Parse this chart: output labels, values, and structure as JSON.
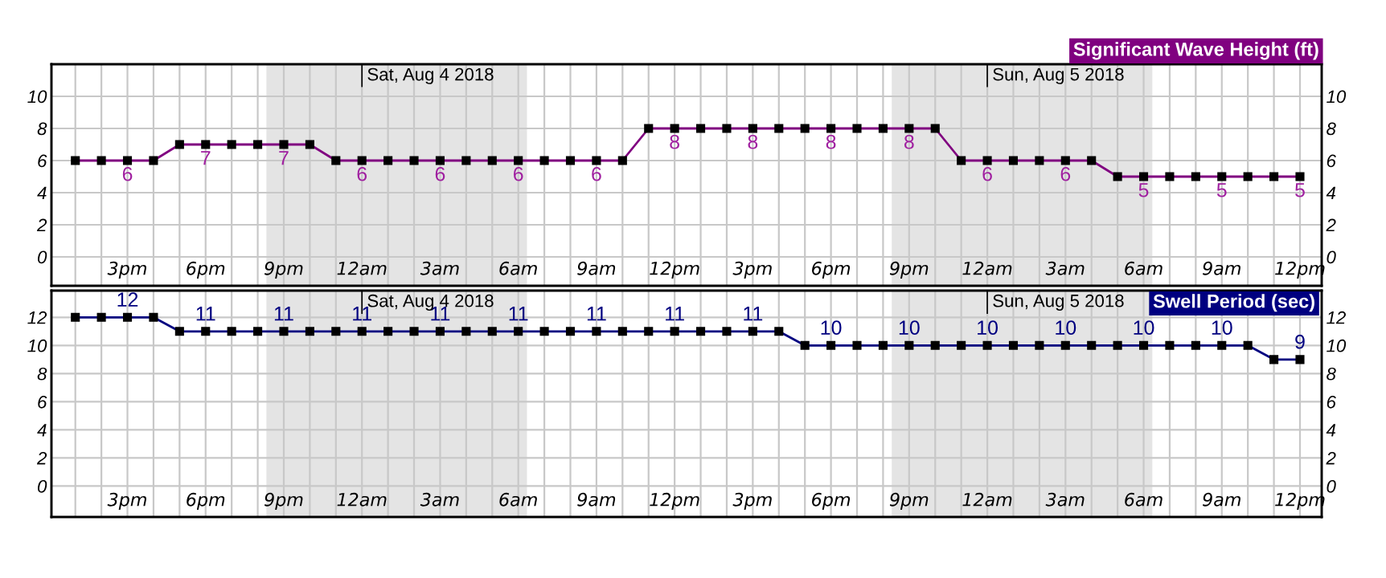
{
  "chart_data": [
    {
      "type": "line",
      "title": "Significant Wave Height (ft)",
      "x": [
        "2018-08-03T13:00",
        "2018-08-03T14:00",
        "2018-08-03T15:00",
        "2018-08-03T16:00",
        "2018-08-03T17:00",
        "2018-08-03T18:00",
        "2018-08-03T19:00",
        "2018-08-03T20:00",
        "2018-08-03T21:00",
        "2018-08-03T22:00",
        "2018-08-03T23:00",
        "2018-08-04T00:00",
        "2018-08-04T01:00",
        "2018-08-04T02:00",
        "2018-08-04T03:00",
        "2018-08-04T04:00",
        "2018-08-04T05:00",
        "2018-08-04T06:00",
        "2018-08-04T07:00",
        "2018-08-04T08:00",
        "2018-08-04T09:00",
        "2018-08-04T10:00",
        "2018-08-04T11:00",
        "2018-08-04T12:00",
        "2018-08-04T13:00",
        "2018-08-04T14:00",
        "2018-08-04T15:00",
        "2018-08-04T16:00",
        "2018-08-04T17:00",
        "2018-08-04T18:00",
        "2018-08-04T19:00",
        "2018-08-04T20:00",
        "2018-08-04T21:00",
        "2018-08-04T22:00",
        "2018-08-04T23:00",
        "2018-08-05T00:00",
        "2018-08-05T01:00",
        "2018-08-05T02:00",
        "2018-08-05T03:00",
        "2018-08-05T04:00",
        "2018-08-05T05:00",
        "2018-08-05T06:00",
        "2018-08-05T07:00",
        "2018-08-05T08:00",
        "2018-08-05T09:00",
        "2018-08-05T10:00",
        "2018-08-05T11:00",
        "2018-08-05T12:00"
      ],
      "series": [
        {
          "color": "#800080",
          "values": [
            6,
            6,
            6,
            6,
            7,
            7,
            7,
            7,
            7,
            7,
            6,
            6,
            6,
            6,
            6,
            6,
            6,
            6,
            6,
            6,
            6,
            6,
            8,
            8,
            8,
            8,
            8,
            8,
            8,
            8,
            8,
            8,
            8,
            8,
            6,
            6,
            6,
            6,
            6,
            6,
            5,
            5,
            5,
            5,
            5,
            5,
            5,
            5
          ],
          "value_labels": [
            null,
            null,
            "6",
            null,
            null,
            "7",
            null,
            null,
            "7",
            null,
            null,
            "6",
            null,
            null,
            "6",
            null,
            null,
            "6",
            null,
            null,
            "6",
            null,
            null,
            "8",
            null,
            null,
            "8",
            null,
            null,
            "8",
            null,
            null,
            "8",
            null,
            null,
            "6",
            null,
            null,
            "6",
            null,
            null,
            "5",
            null,
            null,
            "5",
            null,
            null,
            "5"
          ]
        }
      ],
      "marker": "square",
      "line_style": "solid",
      "grid": true,
      "legend": false,
      "xlim": [
        "2018-08-03T12:05",
        "2018-08-05T12:50"
      ],
      "xticks": [
        {
          "value": "2018-08-03T13:00",
          "label": null
        },
        {
          "value": "2018-08-03T14:00",
          "label": null
        },
        {
          "value": "2018-08-03T15:00",
          "label": "3pm"
        },
        {
          "value": "2018-08-03T16:00",
          "label": null
        },
        {
          "value": "2018-08-03T17:00",
          "label": null
        },
        {
          "value": "2018-08-03T18:00",
          "label": "6pm"
        },
        {
          "value": "2018-08-03T19:00",
          "label": null
        },
        {
          "value": "2018-08-03T20:00",
          "label": null
        },
        {
          "value": "2018-08-03T21:00",
          "label": "9pm"
        },
        {
          "value": "2018-08-03T22:00",
          "label": null
        },
        {
          "value": "2018-08-03T23:00",
          "label": null
        },
        {
          "value": "2018-08-04T00:00",
          "label": "12am"
        },
        {
          "value": "2018-08-04T01:00",
          "label": null
        },
        {
          "value": "2018-08-04T02:00",
          "label": null
        },
        {
          "value": "2018-08-04T03:00",
          "label": "3am"
        },
        {
          "value": "2018-08-04T04:00",
          "label": null
        },
        {
          "value": "2018-08-04T05:00",
          "label": null
        },
        {
          "value": "2018-08-04T06:00",
          "label": "6am"
        },
        {
          "value": "2018-08-04T07:00",
          "label": null
        },
        {
          "value": "2018-08-04T08:00",
          "label": null
        },
        {
          "value": "2018-08-04T09:00",
          "label": "9am"
        },
        {
          "value": "2018-08-04T10:00",
          "label": null
        },
        {
          "value": "2018-08-04T11:00",
          "label": null
        },
        {
          "value": "2018-08-04T12:00",
          "label": "12pm"
        },
        {
          "value": "2018-08-04T13:00",
          "label": null
        },
        {
          "value": "2018-08-04T14:00",
          "label": null
        },
        {
          "value": "2018-08-04T15:00",
          "label": "3pm"
        },
        {
          "value": "2018-08-04T16:00",
          "label": null
        },
        {
          "value": "2018-08-04T17:00",
          "label": null
        },
        {
          "value": "2018-08-04T18:00",
          "label": "6pm"
        },
        {
          "value": "2018-08-04T19:00",
          "label": null
        },
        {
          "value": "2018-08-04T20:00",
          "label": null
        },
        {
          "value": "2018-08-04T21:00",
          "label": "9pm"
        },
        {
          "value": "2018-08-04T22:00",
          "label": null
        },
        {
          "value": "2018-08-04T23:00",
          "label": null
        },
        {
          "value": "2018-08-05T00:00",
          "label": "12am"
        },
        {
          "value": "2018-08-05T01:00",
          "label": null
        },
        {
          "value": "2018-08-05T02:00",
          "label": null
        },
        {
          "value": "2018-08-05T03:00",
          "label": "3am"
        },
        {
          "value": "2018-08-05T04:00",
          "label": null
        },
        {
          "value": "2018-08-05T05:00",
          "label": null
        },
        {
          "value": "2018-08-05T06:00",
          "label": "6am"
        },
        {
          "value": "2018-08-05T07:00",
          "label": null
        },
        {
          "value": "2018-08-05T08:00",
          "label": null
        },
        {
          "value": "2018-08-05T09:00",
          "label": "9am"
        },
        {
          "value": "2018-08-05T10:00",
          "label": null
        },
        {
          "value": "2018-08-05T11:00",
          "label": null
        },
        {
          "value": "2018-08-05T12:00",
          "label": "12pm"
        }
      ],
      "ylim": [
        -1.8,
        12
      ],
      "yticks": [
        0,
        2,
        4,
        6,
        8,
        10
      ],
      "y2lim": [
        -1.8,
        12
      ],
      "y2ticks": [
        0,
        2,
        4,
        6,
        8,
        10
      ],
      "bands": [
        {
          "axis": "x",
          "from": "2018-08-03T20:20",
          "to": "2018-08-04T06:20",
          "color": "#e4e4e4"
        },
        {
          "axis": "x",
          "from": "2018-08-04T20:20",
          "to": "2018-08-05T06:20",
          "color": "#e4e4e4"
        }
      ],
      "ref_lines": [
        {
          "axis": "x",
          "value": "2018-08-04T00:00",
          "label": "Sat, Aug 4 2018"
        },
        {
          "axis": "x",
          "value": "2018-08-05T00:00",
          "label": "Sun, Aug 5 2018"
        }
      ]
    },
    {
      "type": "line",
      "title": "Swell Period (sec)",
      "x": [
        "2018-08-03T13:00",
        "2018-08-03T14:00",
        "2018-08-03T15:00",
        "2018-08-03T16:00",
        "2018-08-03T17:00",
        "2018-08-03T18:00",
        "2018-08-03T19:00",
        "2018-08-03T20:00",
        "2018-08-03T21:00",
        "2018-08-03T22:00",
        "2018-08-03T23:00",
        "2018-08-04T00:00",
        "2018-08-04T01:00",
        "2018-08-04T02:00",
        "2018-08-04T03:00",
        "2018-08-04T04:00",
        "2018-08-04T05:00",
        "2018-08-04T06:00",
        "2018-08-04T07:00",
        "2018-08-04T08:00",
        "2018-08-04T09:00",
        "2018-08-04T10:00",
        "2018-08-04T11:00",
        "2018-08-04T12:00",
        "2018-08-04T13:00",
        "2018-08-04T14:00",
        "2018-08-04T15:00",
        "2018-08-04T16:00",
        "2018-08-04T17:00",
        "2018-08-04T18:00",
        "2018-08-04T19:00",
        "2018-08-04T20:00",
        "2018-08-04T21:00",
        "2018-08-04T22:00",
        "2018-08-04T23:00",
        "2018-08-05T00:00",
        "2018-08-05T01:00",
        "2018-08-05T02:00",
        "2018-08-05T03:00",
        "2018-08-05T04:00",
        "2018-08-05T05:00",
        "2018-08-05T06:00",
        "2018-08-05T07:00",
        "2018-08-05T08:00",
        "2018-08-05T09:00",
        "2018-08-05T10:00",
        "2018-08-05T11:00",
        "2018-08-05T12:00"
      ],
      "series": [
        {
          "color": "#000080",
          "values": [
            12,
            12,
            12,
            12,
            11,
            11,
            11,
            11,
            11,
            11,
            11,
            11,
            11,
            11,
            11,
            11,
            11,
            11,
            11,
            11,
            11,
            11,
            11,
            11,
            11,
            11,
            11,
            11,
            10,
            10,
            10,
            10,
            10,
            10,
            10,
            10,
            10,
            10,
            10,
            10,
            10,
            10,
            10,
            10,
            10,
            10,
            9,
            9
          ],
          "value_labels": [
            null,
            null,
            "12",
            null,
            null,
            "11",
            null,
            null,
            "11",
            null,
            null,
            "11",
            null,
            null,
            "11",
            null,
            null,
            "11",
            null,
            null,
            "11",
            null,
            null,
            "11",
            null,
            null,
            "11",
            null,
            null,
            "10",
            null,
            null,
            "10",
            null,
            null,
            "10",
            null,
            null,
            "10",
            null,
            null,
            "10",
            null,
            null,
            "10",
            null,
            null,
            "9"
          ]
        }
      ],
      "marker": "square",
      "line_style": "solid",
      "grid": true,
      "legend": false,
      "xlim": [
        "2018-08-03T12:05",
        "2018-08-05T12:50"
      ],
      "xticks": [
        {
          "value": "2018-08-03T13:00",
          "label": null
        },
        {
          "value": "2018-08-03T14:00",
          "label": null
        },
        {
          "value": "2018-08-03T15:00",
          "label": "3pm"
        },
        {
          "value": "2018-08-03T16:00",
          "label": null
        },
        {
          "value": "2018-08-03T17:00",
          "label": null
        },
        {
          "value": "2018-08-03T18:00",
          "label": "6pm"
        },
        {
          "value": "2018-08-03T19:00",
          "label": null
        },
        {
          "value": "2018-08-03T20:00",
          "label": null
        },
        {
          "value": "2018-08-03T21:00",
          "label": "9pm"
        },
        {
          "value": "2018-08-03T22:00",
          "label": null
        },
        {
          "value": "2018-08-03T23:00",
          "label": null
        },
        {
          "value": "2018-08-04T00:00",
          "label": "12am"
        },
        {
          "value": "2018-08-04T01:00",
          "label": null
        },
        {
          "value": "2018-08-04T02:00",
          "label": null
        },
        {
          "value": "2018-08-04T03:00",
          "label": "3am"
        },
        {
          "value": "2018-08-04T04:00",
          "label": null
        },
        {
          "value": "2018-08-04T05:00",
          "label": null
        },
        {
          "value": "2018-08-04T06:00",
          "label": "6am"
        },
        {
          "value": "2018-08-04T07:00",
          "label": null
        },
        {
          "value": "2018-08-04T08:00",
          "label": null
        },
        {
          "value": "2018-08-04T09:00",
          "label": "9am"
        },
        {
          "value": "2018-08-04T10:00",
          "label": null
        },
        {
          "value": "2018-08-04T11:00",
          "label": null
        },
        {
          "value": "2018-08-04T12:00",
          "label": "12pm"
        },
        {
          "value": "2018-08-04T13:00",
          "label": null
        },
        {
          "value": "2018-08-04T14:00",
          "label": null
        },
        {
          "value": "2018-08-04T15:00",
          "label": "3pm"
        },
        {
          "value": "2018-08-04T16:00",
          "label": null
        },
        {
          "value": "2018-08-04T17:00",
          "label": null
        },
        {
          "value": "2018-08-04T18:00",
          "label": "6pm"
        },
        {
          "value": "2018-08-04T19:00",
          "label": null
        },
        {
          "value": "2018-08-04T20:00",
          "label": null
        },
        {
          "value": "2018-08-04T21:00",
          "label": "9pm"
        },
        {
          "value": "2018-08-04T22:00",
          "label": null
        },
        {
          "value": "2018-08-04T23:00",
          "label": null
        },
        {
          "value": "2018-08-05T00:00",
          "label": "12am"
        },
        {
          "value": "2018-08-05T01:00",
          "label": null
        },
        {
          "value": "2018-08-05T02:00",
          "label": null
        },
        {
          "value": "2018-08-05T03:00",
          "label": "3am"
        },
        {
          "value": "2018-08-05T04:00",
          "label": null
        },
        {
          "value": "2018-08-05T05:00",
          "label": null
        },
        {
          "value": "2018-08-05T06:00",
          "label": "6am"
        },
        {
          "value": "2018-08-05T07:00",
          "label": null
        },
        {
          "value": "2018-08-05T08:00",
          "label": null
        },
        {
          "value": "2018-08-05T09:00",
          "label": "9am"
        },
        {
          "value": "2018-08-05T10:00",
          "label": null
        },
        {
          "value": "2018-08-05T11:00",
          "label": null
        },
        {
          "value": "2018-08-05T12:00",
          "label": "12pm"
        }
      ],
      "ylim": [
        -2.2,
        13.9
      ],
      "yticks": [
        0,
        2,
        4,
        6,
        8,
        10,
        12
      ],
      "y2lim": [
        -2.2,
        13.9
      ],
      "y2ticks": [
        0,
        2,
        4,
        6,
        8,
        10,
        12
      ],
      "bands": [
        {
          "axis": "x",
          "from": "2018-08-03T20:20",
          "to": "2018-08-04T06:20",
          "color": "#e4e4e4"
        },
        {
          "axis": "x",
          "from": "2018-08-04T20:20",
          "to": "2018-08-05T06:20",
          "color": "#e4e4e4"
        }
      ],
      "ref_lines": [
        {
          "axis": "x",
          "value": "2018-08-04T00:00",
          "label": "Sat, Aug 4 2018"
        },
        {
          "axis": "x",
          "value": "2018-08-05T00:00",
          "label": "Sun, Aug 5 2018"
        }
      ]
    }
  ]
}
